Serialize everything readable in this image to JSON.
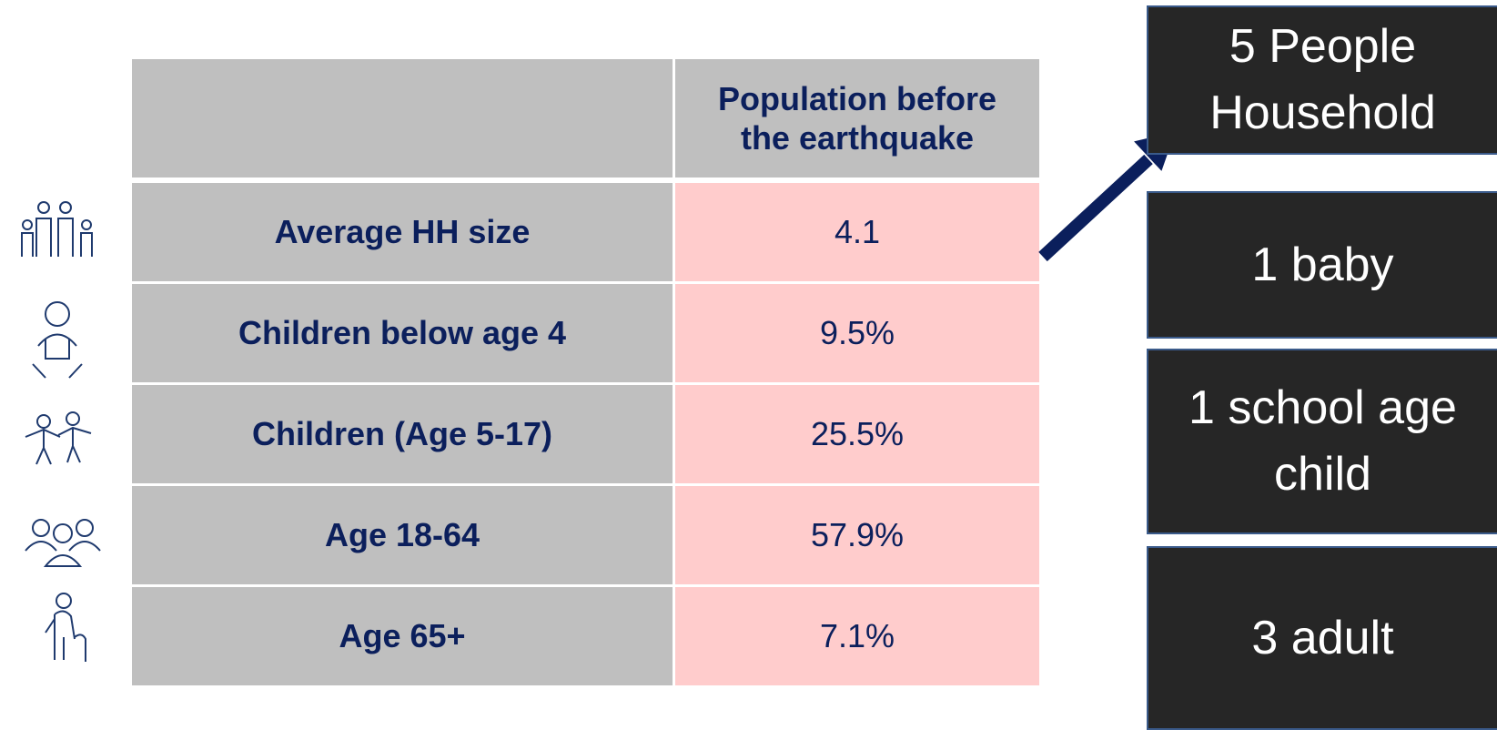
{
  "table": {
    "column_header": "Population before the earthquake",
    "rows": [
      [
        "Average HH size",
        "4.1"
      ],
      [
        "Children below age 4",
        "9.5%"
      ],
      [
        "Children (Age 5-17)",
        "25.5%"
      ],
      [
        "Age 18-64",
        "57.9%"
      ],
      [
        "Age 65+",
        "7.1%"
      ]
    ]
  },
  "boxes": [
    "5 People Household",
    "1 baby",
    "1 school age child",
    "3 adult"
  ]
}
